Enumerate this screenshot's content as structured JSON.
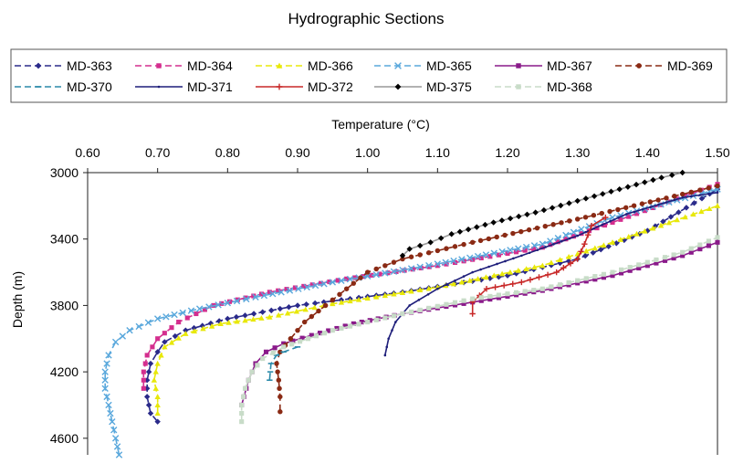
{
  "chart_data": {
    "type": "line",
    "title": "Hydrographic Sections",
    "xlabel": "Temperature (°C)",
    "ylabel": "Depth (m)",
    "x_axis_position": "top",
    "y_inverted": true,
    "xlim": [
      0.6,
      1.5
    ],
    "ylim": [
      3000,
      4700
    ],
    "x_ticks": [
      "0.60",
      "0.70",
      "0.80",
      "0.90",
      "1.00",
      "1.10",
      "1.20",
      "1.30",
      "1.40",
      "1.50"
    ],
    "y_ticks": [
      "3000",
      "3400",
      "3800",
      "4200",
      "4600"
    ],
    "grid": false,
    "legend_position": "top",
    "series": [
      {
        "name": "MD-363",
        "color": "#2a2a8a",
        "dash": "dashed",
        "marker": "diamond",
        "points": [
          [
            0.7,
            4500
          ],
          [
            0.69,
            4450
          ],
          [
            0.685,
            4350
          ],
          [
            0.685,
            4250
          ],
          [
            0.69,
            4150
          ],
          [
            0.7,
            4080
          ],
          [
            0.71,
            4020
          ],
          [
            0.74,
            3950
          ],
          [
            0.8,
            3880
          ],
          [
            0.9,
            3800
          ],
          [
            1.05,
            3720
          ],
          [
            1.2,
            3620
          ],
          [
            1.3,
            3520
          ],
          [
            1.4,
            3350
          ],
          [
            1.5,
            3100
          ]
        ]
      },
      {
        "name": "MD-364",
        "color": "#d42e8e",
        "dash": "dashed",
        "marker": "square",
        "points": [
          [
            0.68,
            4300
          ],
          [
            0.68,
            4200
          ],
          [
            0.685,
            4100
          ],
          [
            0.7,
            4000
          ],
          [
            0.73,
            3900
          ],
          [
            0.78,
            3800
          ],
          [
            0.86,
            3720
          ],
          [
            0.97,
            3640
          ],
          [
            1.1,
            3560
          ],
          [
            1.25,
            3450
          ],
          [
            1.35,
            3300
          ],
          [
            1.5,
            3070
          ]
        ]
      },
      {
        "name": "MD-366",
        "color": "#e8e80a",
        "dash": "dashed",
        "marker": "triangle",
        "points": [
          [
            0.7,
            4450
          ],
          [
            0.7,
            4350
          ],
          [
            0.695,
            4250
          ],
          [
            0.7,
            4150
          ],
          [
            0.71,
            4050
          ],
          [
            0.74,
            3970
          ],
          [
            0.79,
            3910
          ],
          [
            0.86,
            3870
          ],
          [
            0.95,
            3790
          ],
          [
            1.1,
            3690
          ],
          [
            1.25,
            3560
          ],
          [
            1.35,
            3420
          ],
          [
            1.5,
            3200
          ]
        ]
      },
      {
        "name": "MD-365",
        "color": "#5aa8dc",
        "dash": "dashed",
        "marker": "x",
        "points": [
          [
            0.645,
            4700
          ],
          [
            0.64,
            4600
          ],
          [
            0.635,
            4500
          ],
          [
            0.63,
            4400
          ],
          [
            0.625,
            4300
          ],
          [
            0.625,
            4200
          ],
          [
            0.63,
            4100
          ],
          [
            0.64,
            4020
          ],
          [
            0.66,
            3950
          ],
          [
            0.7,
            3880
          ],
          [
            0.76,
            3820
          ],
          [
            0.84,
            3750
          ],
          [
            0.95,
            3660
          ],
          [
            1.1,
            3550
          ],
          [
            1.25,
            3430
          ],
          [
            1.35,
            3270
          ],
          [
            1.5,
            3100
          ]
        ]
      },
      {
        "name": "MD-367",
        "color": "#8a1a8a",
        "dash": "solid",
        "marker": "square",
        "points": [
          [
            0.82,
            4400
          ],
          [
            0.83,
            4250
          ],
          [
            0.84,
            4150
          ],
          [
            0.855,
            4080
          ],
          [
            0.88,
            4030
          ],
          [
            0.92,
            3980
          ],
          [
            0.98,
            3910
          ],
          [
            1.05,
            3850
          ],
          [
            1.15,
            3780
          ],
          [
            1.25,
            3710
          ],
          [
            1.35,
            3620
          ],
          [
            1.45,
            3500
          ],
          [
            1.5,
            3420
          ]
        ]
      },
      {
        "name": "MD-369",
        "color": "#8a2a14",
        "dash": "dashed",
        "marker": "circle",
        "points": [
          [
            0.875,
            4440
          ],
          [
            0.875,
            4350
          ],
          [
            0.873,
            4250
          ],
          [
            0.87,
            4150
          ],
          [
            0.875,
            4080
          ],
          [
            0.89,
            4000
          ],
          [
            0.91,
            3900
          ],
          [
            0.94,
            3800
          ],
          [
            0.97,
            3700
          ],
          [
            1.0,
            3600
          ],
          [
            1.05,
            3520
          ],
          [
            1.15,
            3420
          ],
          [
            1.3,
            3280
          ],
          [
            1.45,
            3130
          ],
          [
            1.5,
            3080
          ]
        ]
      },
      {
        "name": "MD-370",
        "color": "#2c8aaa",
        "dash": "dashed",
        "marker": "dash",
        "points": [
          [
            0.86,
            4250
          ],
          [
            0.862,
            4150
          ],
          [
            0.87,
            4100
          ],
          [
            0.88,
            4080
          ],
          [
            0.9,
            4050
          ]
        ]
      },
      {
        "name": "MD-371",
        "color": "#1e1e7a",
        "dash": "solid",
        "marker": "dot",
        "points": [
          [
            1.025,
            4100
          ],
          [
            1.03,
            4000
          ],
          [
            1.04,
            3900
          ],
          [
            1.06,
            3800
          ],
          [
            1.1,
            3700
          ],
          [
            1.15,
            3600
          ],
          [
            1.22,
            3500
          ],
          [
            1.3,
            3380
          ],
          [
            1.37,
            3250
          ],
          [
            1.45,
            3150
          ],
          [
            1.5,
            3120
          ]
        ]
      },
      {
        "name": "MD-372",
        "color": "#c82828",
        "dash": "solid",
        "marker": "plus",
        "points": [
          [
            1.15,
            3850
          ],
          [
            1.15,
            3780
          ],
          [
            1.17,
            3700
          ],
          [
            1.22,
            3660
          ],
          [
            1.27,
            3600
          ],
          [
            1.3,
            3520
          ],
          [
            1.31,
            3430
          ],
          [
            1.32,
            3320
          ],
          [
            1.34,
            3270
          ]
        ]
      },
      {
        "name": "MD-375",
        "color": "#000000",
        "dash": "solid",
        "marker": "diamond",
        "line_color": "#999999",
        "points": [
          [
            1.05,
            3500
          ],
          [
            1.06,
            3460
          ],
          [
            1.09,
            3420
          ],
          [
            1.12,
            3370
          ],
          [
            1.18,
            3300
          ],
          [
            1.24,
            3240
          ],
          [
            1.3,
            3170
          ],
          [
            1.36,
            3100
          ],
          [
            1.42,
            3030
          ],
          [
            1.45,
            3000
          ]
        ]
      },
      {
        "name": "MD-368",
        "color": "#c8dcc8",
        "dash": "dashed",
        "marker": "square",
        "points": [
          [
            0.82,
            4500
          ],
          [
            0.82,
            4400
          ],
          [
            0.825,
            4300
          ],
          [
            0.835,
            4200
          ],
          [
            0.85,
            4120
          ],
          [
            0.88,
            4050
          ],
          [
            0.95,
            3950
          ],
          [
            1.05,
            3850
          ],
          [
            1.15,
            3760
          ],
          [
            1.25,
            3700
          ],
          [
            1.35,
            3600
          ],
          [
            1.45,
            3480
          ],
          [
            1.5,
            3390
          ]
        ]
      }
    ]
  }
}
